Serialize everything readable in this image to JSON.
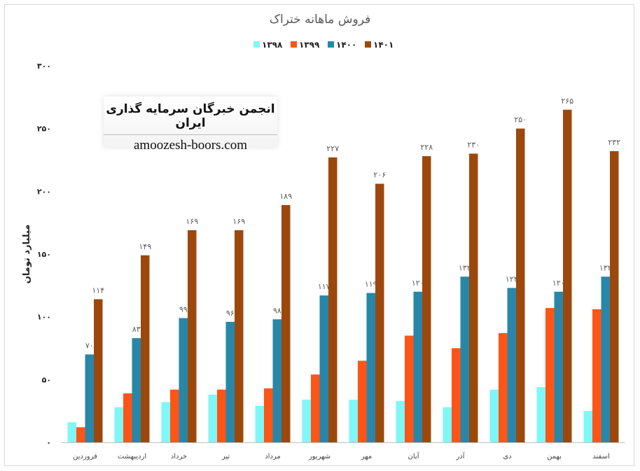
{
  "chart_data": {
    "type": "bar",
    "title": "فروش ماهانه ختراک",
    "ylabel": "میلیارد تومان",
    "xlabel": "",
    "ylim": [
      0,
      300
    ],
    "yticks": [
      0,
      50,
      100,
      150,
      200,
      250,
      300
    ],
    "ytick_labels": [
      "۰",
      "۵۰",
      "۱۰۰",
      "۱۵۰",
      "۲۰۰",
      "۲۵۰",
      "۳۰۰"
    ],
    "grid": false,
    "legend_position": "top",
    "categories": [
      "فروردین",
      "اردیبهشت",
      "خرداد",
      "تیر",
      "مرداد",
      "شهریور",
      "مهر",
      "آبان",
      "آذر",
      "دی",
      "بهمن",
      "اسفند"
    ],
    "series": [
      {
        "name": "۱۳۹۸",
        "color": "#7ff7f7",
        "show_labels": false,
        "values": [
          16,
          28,
          32,
          38,
          29,
          34,
          34,
          33,
          28,
          42,
          44,
          25
        ]
      },
      {
        "name": "۱۳۹۹",
        "color": "#fe5516",
        "show_labels": false,
        "values": [
          12,
          39,
          42,
          42,
          43,
          54,
          65,
          85,
          75,
          87,
          107,
          106
        ]
      },
      {
        "name": "۱۴۰۰",
        "color": "#2887a8",
        "show_labels": true,
        "values": [
          70,
          83,
          99,
          96,
          98,
          117,
          119,
          120,
          132,
          123,
          120,
          132
        ]
      },
      {
        "name": "۱۴۰۱",
        "color": "#9c480c",
        "show_labels": true,
        "values": [
          114,
          149,
          169,
          169,
          189,
          227,
          206,
          228,
          230,
          250,
          265,
          232
        ]
      }
    ]
  },
  "watermark": {
    "title": "انجمن خبرگان سرمایه گذاری ایران",
    "site": "amoozesh-boors.com"
  }
}
